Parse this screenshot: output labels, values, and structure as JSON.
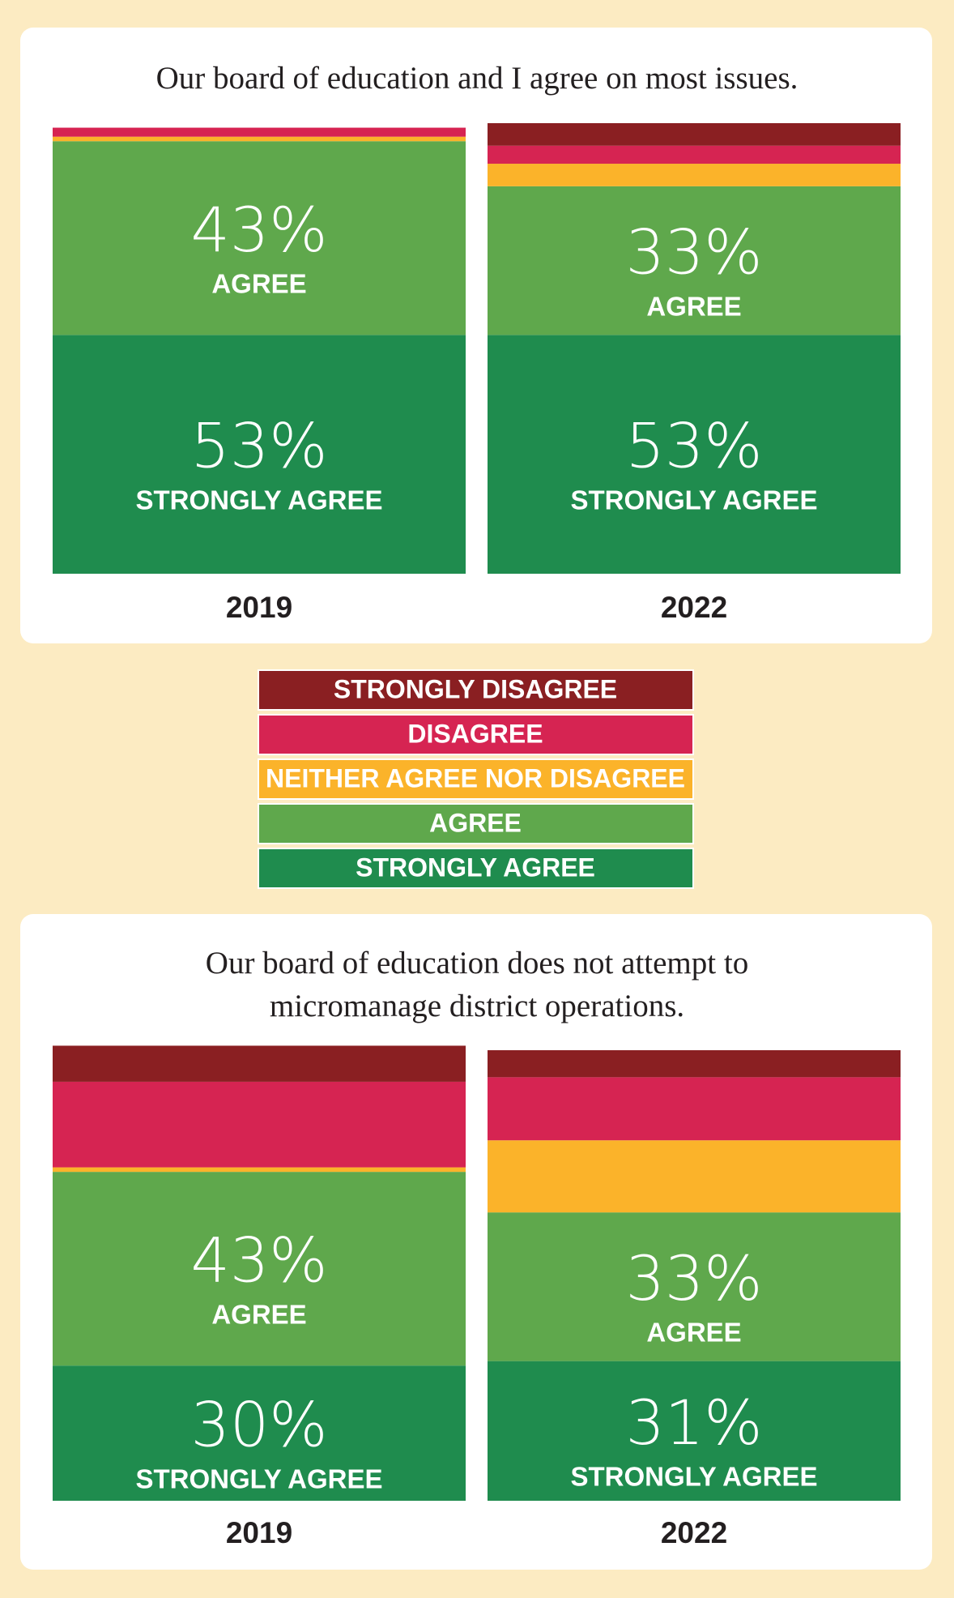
{
  "chart_data": [
    {
      "type": "bar",
      "stacked": true,
      "title": "Our board of education and I agree on most issues.",
      "categories": [
        "2019",
        "2022"
      ],
      "ylim": [
        0,
        100
      ],
      "series": [
        {
          "name": "STRONGLY AGREE",
          "color": "#1f8c4e",
          "values": [
            53,
            53
          ],
          "value_labels": [
            "53%",
            "53%"
          ]
        },
        {
          "name": "AGREE",
          "color": "#5fa84c",
          "values": [
            43,
            33
          ],
          "value_labels": [
            "43%",
            "33%"
          ]
        },
        {
          "name": "NEITHER AGREE NOR DISAGREE",
          "color": "#fbb32a",
          "values": [
            1,
            5
          ]
        },
        {
          "name": "DISAGREE",
          "color": "#d62452",
          "values": [
            2,
            4
          ]
        },
        {
          "name": "STRONGLY DISAGREE",
          "color": "#8a1f22",
          "values": [
            0,
            5
          ]
        }
      ]
    },
    {
      "type": "bar",
      "stacked": true,
      "title": "Our board of education does not attempt to micromanage district operations.",
      "categories": [
        "2019",
        "2022"
      ],
      "ylim": [
        0,
        100
      ],
      "series": [
        {
          "name": "STRONGLY AGREE",
          "color": "#1f8c4e",
          "values": [
            30,
            31
          ],
          "value_labels": [
            "30%",
            "31%"
          ]
        },
        {
          "name": "AGREE",
          "color": "#5fa84c",
          "values": [
            43,
            33
          ],
          "value_labels": [
            "43%",
            "33%"
          ]
        },
        {
          "name": "NEITHER AGREE NOR DISAGREE",
          "color": "#fbb32a",
          "values": [
            1,
            16
          ]
        },
        {
          "name": "DISAGREE",
          "color": "#d62452",
          "values": [
            19,
            14
          ]
        },
        {
          "name": "STRONGLY DISAGREE",
          "color": "#8a1f22",
          "values": [
            8,
            6
          ]
        }
      ]
    }
  ]
}
